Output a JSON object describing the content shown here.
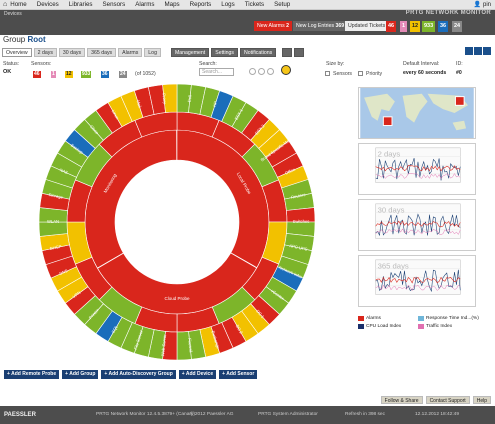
{
  "nav": {
    "items": [
      "Home",
      "Devices",
      "Libraries",
      "Sensors",
      "Alarms",
      "Maps",
      "Reports",
      "Logs",
      "Tickets",
      "Setup"
    ],
    "user": "pin"
  },
  "breadcrumb": "Devices",
  "brand": "PRTG NETWORK MONITOR",
  "alerts": {
    "new_alarms": "New Alarms",
    "new_alarms_count": "2",
    "new_log": "New Log Entries",
    "new_log_count": "369",
    "updated_tickets": "Updated Tickets",
    "badges": [
      "46",
      "1",
      "12",
      "933",
      "36",
      "24"
    ]
  },
  "page": {
    "title_prefix": "Group",
    "title_name": "Root"
  },
  "tabs": [
    "Overview",
    "2 days",
    "30 days",
    "365 days",
    "Alarms",
    "Log",
    "Management",
    "Settings",
    "Notifications"
  ],
  "status": {
    "status_label": "Status:",
    "status_value": "OK",
    "sensors_label": "Sensors:",
    "counts": [
      "46",
      "1",
      "12",
      "933",
      "36",
      "24"
    ],
    "total": "(of 1052)",
    "search_label": "Search:",
    "search_placeholder": "Search...",
    "size_label": "Size by:",
    "size_sensors": "Sensors",
    "size_priority": "Priority",
    "interval_label": "Default Interval:",
    "interval_value": "every 60 seconds",
    "id_label": "ID:",
    "id_value": "#0"
  },
  "sunburst": {
    "center": "Root",
    "inner_ring": [
      {
        "label": "Local Probe",
        "color": "#d9261c"
      },
      {
        "label": "Cloud Probe",
        "color": "#d9261c"
      },
      {
        "label": "Monitoring",
        "color": "#d9261c"
      }
    ],
    "outer_labels": [
      "Dell",
      "HP",
      "ESX 1",
      "ESX 2",
      "Brand Specific Monit.",
      "Office",
      "Routers",
      "Switches",
      "APC UPS",
      "Network Infra",
      "vCenter",
      "DC 1",
      "DC 2",
      "Exchange",
      "Firewall",
      "Web Server",
      "File Server",
      "SQL",
      "Printer",
      "VPN",
      "DNS",
      "DHCP",
      "WLAN",
      "Storage",
      "NAS",
      "Backup",
      "Cisco",
      "Linux",
      "Mail",
      "Proxy"
    ]
  },
  "graphs": [
    {
      "label": "2 days",
      "color": "#1a3f73"
    },
    {
      "label": "30 days",
      "color": "#1a3f73"
    },
    {
      "label": "365 days",
      "color": "#1a3f73"
    }
  ],
  "legend": {
    "items": [
      {
        "label": "Alarms",
        "color": "#d9261c"
      },
      {
        "label": "Response Time Ind...(%)",
        "color": "#6fb6d9"
      },
      {
        "label": "CPU Load Index",
        "color": "#1a2f6b"
      },
      {
        "label": "Traffic Index",
        "color": "#e070b0"
      }
    ]
  },
  "actions": [
    "Add Remote Probe",
    "Add Group",
    "Add Auto-Discovery Group",
    "Add Device",
    "Add Sensor"
  ],
  "footer_links": [
    "Follow & Share",
    "Contact Support",
    "Help"
  ],
  "footer": {
    "logo": "PAESSLER",
    "version": "PRTG Network Monitor 12.4.5.3879+ (Canary)",
    "copyright": "© 2012 Paessler AG",
    "admin": "PRTG System Administrator",
    "refresh": "Refresh in 398 sec",
    "datetime": "12.12.2012 18:42:49"
  }
}
